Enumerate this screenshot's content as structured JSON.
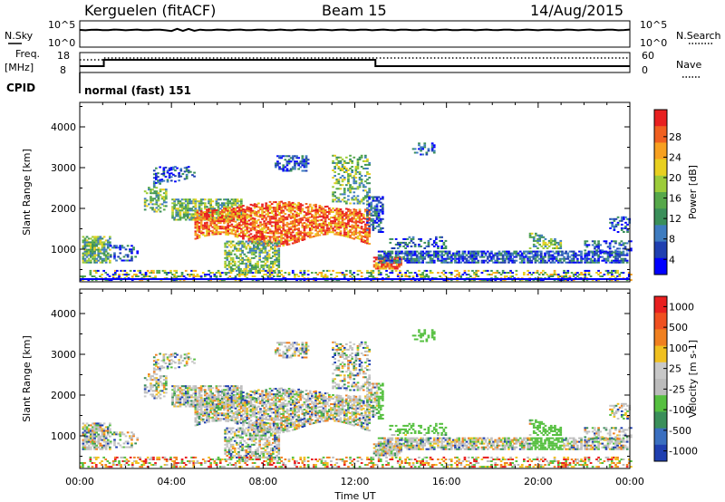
{
  "header": {
    "station": "Kerguelen (fitACF)",
    "beam": "Beam 15",
    "date": "14/Aug/2015"
  },
  "nsky_panel": {
    "left_label": "N.Sky",
    "right_label": "N.Search",
    "left_top_tick": "10^5",
    "left_bottom_tick": "10^0",
    "right_top_tick": "10^5",
    "right_bottom_tick": "10^0"
  },
  "freq_panel": {
    "left_label_1": "Freq.",
    "left_label_2": "[MHz]",
    "right_label": "Nave",
    "left_ticks": [
      "18",
      "8"
    ],
    "right_ticks": [
      "60",
      "0"
    ],
    "cpid_label": "CPID",
    "cpid_text": "normal (fast) 151"
  },
  "chart_data": [
    {
      "type": "heatmap",
      "title": "",
      "ylabel": "Slant Range [km]",
      "xlabel": "",
      "colorbar_label": "Power [dB]",
      "colorbar_ticks": [
        "4",
        "8",
        "12",
        "16",
        "20",
        "24",
        "28"
      ],
      "colorbar_colors": [
        "#0000ff",
        "#1f3fb0",
        "#3e7cc0",
        "#3a8f5a",
        "#56a84a",
        "#9ccc3a",
        "#e8d020",
        "#f7a020",
        "#f06020",
        "#e82020"
      ],
      "yticks": [
        "1000",
        "2000",
        "3000",
        "4000"
      ],
      "ylim": [
        200,
        4600
      ],
      "xlim": [
        0,
        24
      ],
      "grid": false
    },
    {
      "type": "heatmap",
      "title": "",
      "ylabel": "Slant Range [km]",
      "xlabel": "Time UT",
      "colorbar_label": "Velocity [m s-1]",
      "colorbar_ticks": [
        "1000",
        "500",
        "100",
        "25",
        "-25",
        "-100",
        "-500",
        "-1000"
      ],
      "colorbar_colors": [
        "#1f3fb0",
        "#3a6fc0",
        "#3a8f5a",
        "#56c040",
        "#bcbcbc",
        "#c8c8c8",
        "#f0c020",
        "#f08020",
        "#f05020",
        "#e82020"
      ],
      "yticks": [
        "1000",
        "2000",
        "3000",
        "4000"
      ],
      "xticks": [
        "00:00",
        "04:00",
        "08:00",
        "12:00",
        "16:00",
        "20:00",
        "00:00"
      ],
      "ylim": [
        200,
        4600
      ],
      "xlim": [
        0,
        24
      ],
      "grid": false
    }
  ]
}
